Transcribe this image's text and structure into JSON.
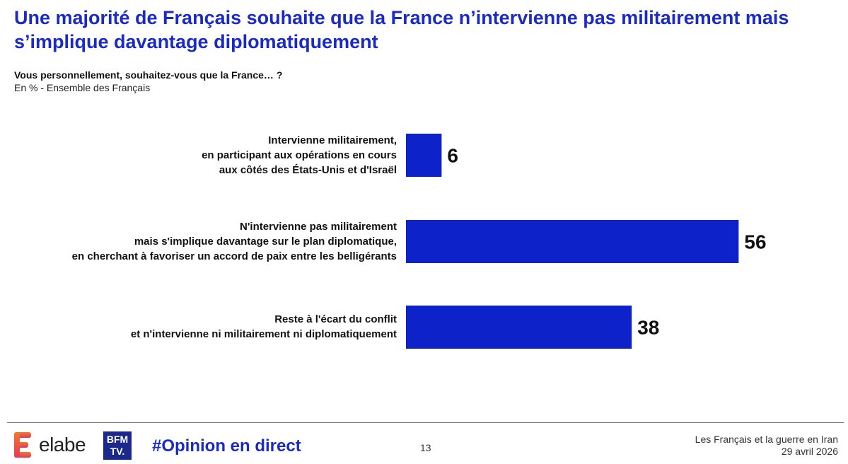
{
  "title": "Une majorité de Français souhaite que la France n’intervienne pas militairement mais s’implique davantage diplomatiquement",
  "question": "Vous personnellement, souhaitez-vous que la France… ?",
  "subtitle": "En % - Ensemble des Français",
  "colors": {
    "accent": "#1a2bc4",
    "bar": "#0d22c9"
  },
  "chart_data": {
    "type": "bar",
    "orientation": "horizontal",
    "categories": [
      [
        "Intervienne militairement,",
        "en participant aux opérations en cours",
        "aux côtés des États-Unis et d'Israël"
      ],
      [
        "N'intervienne pas militairement",
        "mais s'implique davantage sur le plan diplomatique,",
        "en cherchant à favoriser un accord de paix entre les belligérants"
      ],
      [
        "Reste à l'écart du conflit",
        "et n'intervienne ni militairement ni diplomatiquement"
      ]
    ],
    "values": [
      6,
      56,
      38
    ],
    "data_labels": [
      "6",
      "56",
      "38"
    ],
    "unit": "%",
    "grid": false,
    "legend": "none"
  },
  "footer": {
    "brand": "elabe",
    "partner_logo": [
      "BFM",
      "TV."
    ],
    "hashtag": "#Opinion en direct",
    "page": "13",
    "study": "Les Français et la guerre en Iran",
    "date": "29 avril 2026"
  }
}
